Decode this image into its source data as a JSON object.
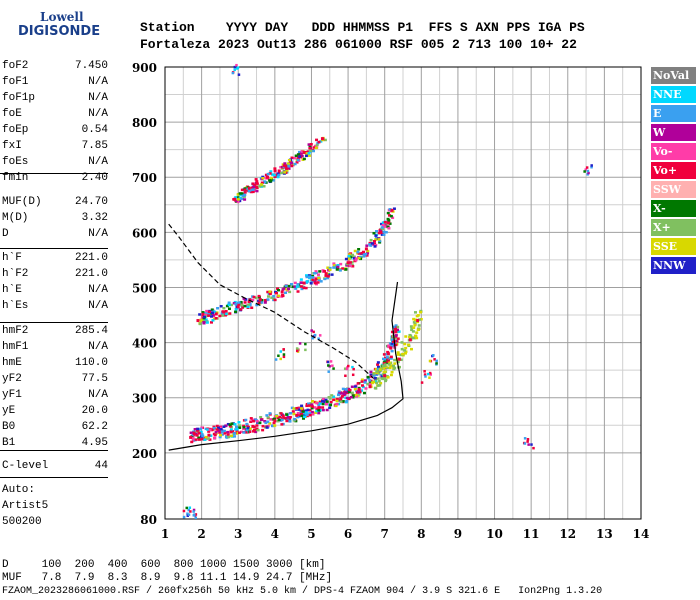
{
  "logo": {
    "line1": "Lowell",
    "line2": "DIGISONDE"
  },
  "header": {
    "row1": "Station    YYYY DAY   DDD HHMMSS P1  FFS S AXN PPS IGA PS",
    "row2": "Fortaleza 2023 Out13 286 061000 RSF 005 2 713 100 10+ 22"
  },
  "params_group1": [
    {
      "name": "foF2",
      "value": "7.450"
    },
    {
      "name": "foF1",
      "value": "N/A"
    },
    {
      "name": "foF1p",
      "value": "N/A"
    },
    {
      "name": "foE",
      "value": "N/A"
    },
    {
      "name": "foEp",
      "value": "0.54"
    },
    {
      "name": "fxI",
      "value": "7.85"
    },
    {
      "name": "foEs",
      "value": "N/A"
    },
    {
      "name": "fmin",
      "value": "2.40"
    }
  ],
  "params_group2": [
    {
      "name": "MUF(D)",
      "value": "24.70"
    },
    {
      "name": "M(D)",
      "value": "3.32"
    },
    {
      "name": "D",
      "value": "N/A"
    }
  ],
  "params_group3": [
    {
      "name": "h`F",
      "value": "221.0"
    },
    {
      "name": "h`F2",
      "value": "221.0"
    },
    {
      "name": "h`E",
      "value": "N/A"
    },
    {
      "name": "h`Es",
      "value": "N/A"
    }
  ],
  "params_group4": [
    {
      "name": "hmF2",
      "value": "285.4"
    },
    {
      "name": "hmF1",
      "value": "N/A"
    },
    {
      "name": "hmE",
      "value": "110.0"
    },
    {
      "name": "yF2",
      "value": "77.5"
    },
    {
      "name": "yF1",
      "value": "N/A"
    },
    {
      "name": "yE",
      "value": "20.0"
    },
    {
      "name": "B0",
      "value": "62.2"
    },
    {
      "name": "B1",
      "value": "4.95"
    }
  ],
  "params_group5": [
    {
      "name": "C-level",
      "value": "44"
    }
  ],
  "auto": {
    "line1": "Auto:",
    "line2": "Artist5",
    "line3": "500200"
  },
  "footer": {
    "d_row": "D     100  200  400  600  800 1000 1500 3000 [km]",
    "muf_row": "MUF   7.8  7.9  8.3  8.9  9.8 11.1 14.9 24.7 [MHz]",
    "file_row": "FZAOM_2023286061000.RSF / 260fx256h 50 kHz 5.0 km / DPS-4 FZAOM 904 / 3.9 S 321.6 E   Ion2Png 1.3.20"
  },
  "legend": [
    {
      "label": "NoVal",
      "color": "#808080"
    },
    {
      "label": "NNE",
      "color": "#00d8ff"
    },
    {
      "label": "E",
      "color": "#3aa0f0"
    },
    {
      "label": "W",
      "color": "#b0009a"
    },
    {
      "label": "Vo-",
      "color": "#ff3ca8"
    },
    {
      "label": "Vo+",
      "color": "#f0003c"
    },
    {
      "label": "SSW",
      "color": "#ffb0b0"
    },
    {
      "label": "X-",
      "color": "#007800"
    },
    {
      "label": "X+",
      "color": "#80c060"
    },
    {
      "label": "SSE",
      "color": "#d8d800"
    },
    {
      "label": "NNW",
      "color": "#2020c8"
    }
  ],
  "chart_data": {
    "type": "scatter",
    "title": "",
    "xlabel": "",
    "ylabel": "",
    "xlim": [
      1,
      14
    ],
    "ylim": [
      80,
      900
    ],
    "x_ticks": [
      1,
      2,
      3,
      4,
      5,
      6,
      7,
      8,
      9,
      10,
      11,
      12,
      13,
      14
    ],
    "y_ticks": [
      80,
      200,
      300,
      400,
      500,
      600,
      700,
      800,
      900
    ],
    "grid": true,
    "traces": [
      {
        "name": "F2 O-trace",
        "points": [
          [
            1.7,
            228
          ],
          [
            2.2,
            232
          ],
          [
            2.8,
            238
          ],
          [
            3.4,
            248
          ],
          [
            4.0,
            258
          ],
          [
            4.6,
            268
          ],
          [
            5.2,
            282
          ],
          [
            5.8,
            298
          ],
          [
            6.3,
            315
          ],
          [
            6.8,
            345
          ],
          [
            7.1,
            380
          ],
          [
            7.3,
            420
          ]
        ]
      },
      {
        "name": "F2 2nd hop",
        "points": [
          [
            1.9,
            440
          ],
          [
            2.4,
            452
          ],
          [
            3.0,
            465
          ],
          [
            3.6,
            478
          ],
          [
            4.2,
            492
          ],
          [
            4.8,
            508
          ],
          [
            5.4,
            525
          ],
          [
            6.0,
            545
          ],
          [
            6.5,
            570
          ],
          [
            6.9,
            600
          ],
          [
            7.2,
            640
          ]
        ]
      },
      {
        "name": "F2 3rd hop",
        "points": [
          [
            2.9,
            660
          ],
          [
            3.3,
            680
          ],
          [
            3.8,
            700
          ],
          [
            4.3,
            720
          ],
          [
            4.8,
            745
          ],
          [
            5.3,
            770
          ]
        ]
      },
      {
        "name": "X-trace",
        "points": [
          [
            6.6,
            320
          ],
          [
            7.0,
            340
          ],
          [
            7.4,
            370
          ],
          [
            7.7,
            405
          ],
          [
            7.9,
            440
          ]
        ]
      },
      {
        "name": "scattered echoes",
        "points": [
          [
            4.1,
            380
          ],
          [
            4.7,
            395
          ],
          [
            5.1,
            420
          ],
          [
            5.5,
            360
          ],
          [
            6.0,
            350
          ],
          [
            8.1,
            340
          ],
          [
            8.3,
            370
          ],
          [
            10.9,
            220
          ],
          [
            12.5,
            715
          ],
          [
            1.55,
            92
          ],
          [
            1.75,
            93
          ],
          [
            2.9,
            897
          ]
        ]
      }
    ],
    "profile_dashed": [
      [
        1.1,
        615
      ],
      [
        1.4,
        590
      ],
      [
        1.9,
        545
      ],
      [
        2.5,
        505
      ],
      [
        3.2,
        480
      ],
      [
        4.0,
        455
      ],
      [
        4.8,
        420
      ],
      [
        5.6,
        390
      ],
      [
        6.2,
        365
      ],
      [
        6.7,
        335
      ]
    ],
    "profile_solid": [
      [
        1.1,
        205
      ],
      [
        2.0,
        215
      ],
      [
        3.0,
        222
      ],
      [
        4.0,
        230
      ],
      [
        5.0,
        240
      ],
      [
        6.0,
        252
      ],
      [
        6.8,
        268
      ],
      [
        7.2,
        282
      ],
      [
        7.5,
        298
      ],
      [
        7.45,
        330
      ],
      [
        7.3,
        380
      ],
      [
        7.2,
        440
      ],
      [
        7.35,
        510
      ]
    ]
  }
}
